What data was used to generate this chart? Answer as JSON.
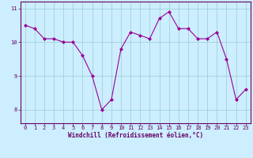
{
  "x": [
    0,
    1,
    2,
    3,
    4,
    5,
    6,
    7,
    8,
    9,
    10,
    11,
    12,
    13,
    14,
    15,
    16,
    17,
    18,
    19,
    20,
    21,
    22,
    23
  ],
  "y": [
    10.5,
    10.4,
    10.1,
    10.1,
    10.0,
    10.0,
    9.6,
    9.0,
    8.0,
    8.3,
    9.8,
    10.3,
    10.2,
    10.1,
    10.7,
    10.9,
    10.4,
    10.4,
    10.1,
    10.1,
    10.3,
    9.5,
    8.3,
    8.6
  ],
  "line_color": "#990099",
  "marker": "D",
  "marker_size": 2.0,
  "bg_color": "#cceeff",
  "grid_color": "#99cccc",
  "axis_color": "#660066",
  "spine_color": "#660066",
  "xlabel": "Windchill (Refroidissement éolien,°C)",
  "xlabel_fontsize": 5.5,
  "tick_fontsize": 5.0,
  "ylim": [
    7.6,
    11.2
  ],
  "xlim": [
    -0.5,
    23.5
  ],
  "yticks": [
    8,
    9,
    10,
    11
  ],
  "xticks": [
    0,
    1,
    2,
    3,
    4,
    5,
    6,
    7,
    8,
    9,
    10,
    11,
    12,
    13,
    14,
    15,
    16,
    17,
    18,
    19,
    20,
    21,
    22,
    23
  ]
}
